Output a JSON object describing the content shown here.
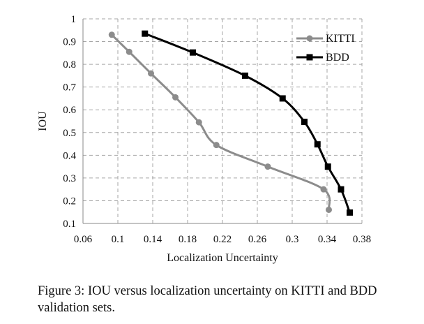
{
  "chart_data": {
    "type": "line",
    "title": "",
    "xlabel": "Localization Uncertainty",
    "ylabel": "IOU",
    "xlim": [
      0.06,
      0.38
    ],
    "ylim": [
      0.1,
      1.0
    ],
    "xticks": [
      "0.06",
      "0.1",
      "0.14",
      "0.18",
      "0.22",
      "0.26",
      "0.3",
      "0.34",
      "0.38"
    ],
    "yticks": [
      "0.1",
      "0.2",
      "0.3",
      "0.4",
      "0.5",
      "0.6",
      "0.7",
      "0.8",
      "0.9",
      "1"
    ],
    "grid": true,
    "legend_position": "top-right",
    "series": [
      {
        "name": "KITTI",
        "color": "#8c8c8c",
        "marker": "circle",
        "x": [
          0.093,
          0.113,
          0.138,
          0.166,
          0.193,
          0.213,
          0.272,
          0.336,
          0.342
        ],
        "y": [
          0.93,
          0.855,
          0.76,
          0.655,
          0.545,
          0.445,
          0.35,
          0.25,
          0.16
        ]
      },
      {
        "name": "BDD",
        "color": "#000000",
        "marker": "square",
        "x": [
          0.131,
          0.186,
          0.246,
          0.289,
          0.314,
          0.329,
          0.341,
          0.356,
          0.366
        ],
        "y": [
          0.935,
          0.852,
          0.75,
          0.65,
          0.547,
          0.448,
          0.35,
          0.25,
          0.148
        ]
      }
    ]
  },
  "caption": {
    "text": "Figure 3: IOU versus localization uncertainty on KITTI and BDD validation sets."
  }
}
